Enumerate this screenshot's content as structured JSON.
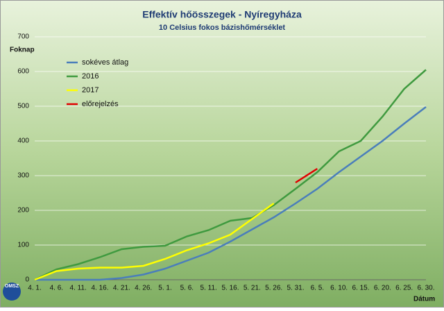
{
  "chart_data": {
    "type": "line",
    "title": "Effektív hőösszegek - Nyíregyháza",
    "subtitle": "10 Celsius fokos bázishőmérséklet",
    "y_label": "Foknap",
    "x_label": "Dátum",
    "categories": [
      "4. 1.",
      "4. 6.",
      "4. 11.",
      "4. 16.",
      "4. 21.",
      "4. 26.",
      "5. 1.",
      "5. 6.",
      "5. 11.",
      "5. 16.",
      "5. 21.",
      "5. 26.",
      "5. 31.",
      "6. 5.",
      "6. 10.",
      "6. 15.",
      "6. 20.",
      "6. 25.",
      "6. 30."
    ],
    "series": [
      {
        "name": "sokéves átlag",
        "color": "#4a7ebb",
        "values": [
          0,
          0,
          0,
          0,
          5,
          15,
          32,
          55,
          78,
          110,
          145,
          180,
          220,
          262,
          310,
          355,
          400,
          450,
          498
        ]
      },
      {
        "name": "2016",
        "color": "#3f9a3f",
        "values": [
          0,
          30,
          45,
          65,
          88,
          95,
          98,
          125,
          143,
          170,
          178,
          215,
          262,
          310,
          370,
          400,
          470,
          550,
          605
        ]
      },
      {
        "name": "2017",
        "color": "#ffff00",
        "values": [
          0,
          25,
          32,
          35,
          35,
          40,
          60,
          85,
          105,
          130,
          175,
          220,
          null,
          null,
          null,
          null,
          null,
          null,
          null
        ]
      },
      {
        "name": "előrejelzés",
        "color": "#e00000",
        "values": [
          null,
          null,
          null,
          null,
          null,
          null,
          null,
          null,
          null,
          null,
          null,
          null,
          280,
          320,
          null,
          null,
          null,
          null,
          null
        ]
      }
    ],
    "ylim": [
      0,
      700
    ],
    "yticks": [
      0,
      100,
      200,
      300,
      400,
      500,
      600,
      700
    ],
    "grid": true,
    "legend": "top-left",
    "logo": "OMSZ"
  }
}
